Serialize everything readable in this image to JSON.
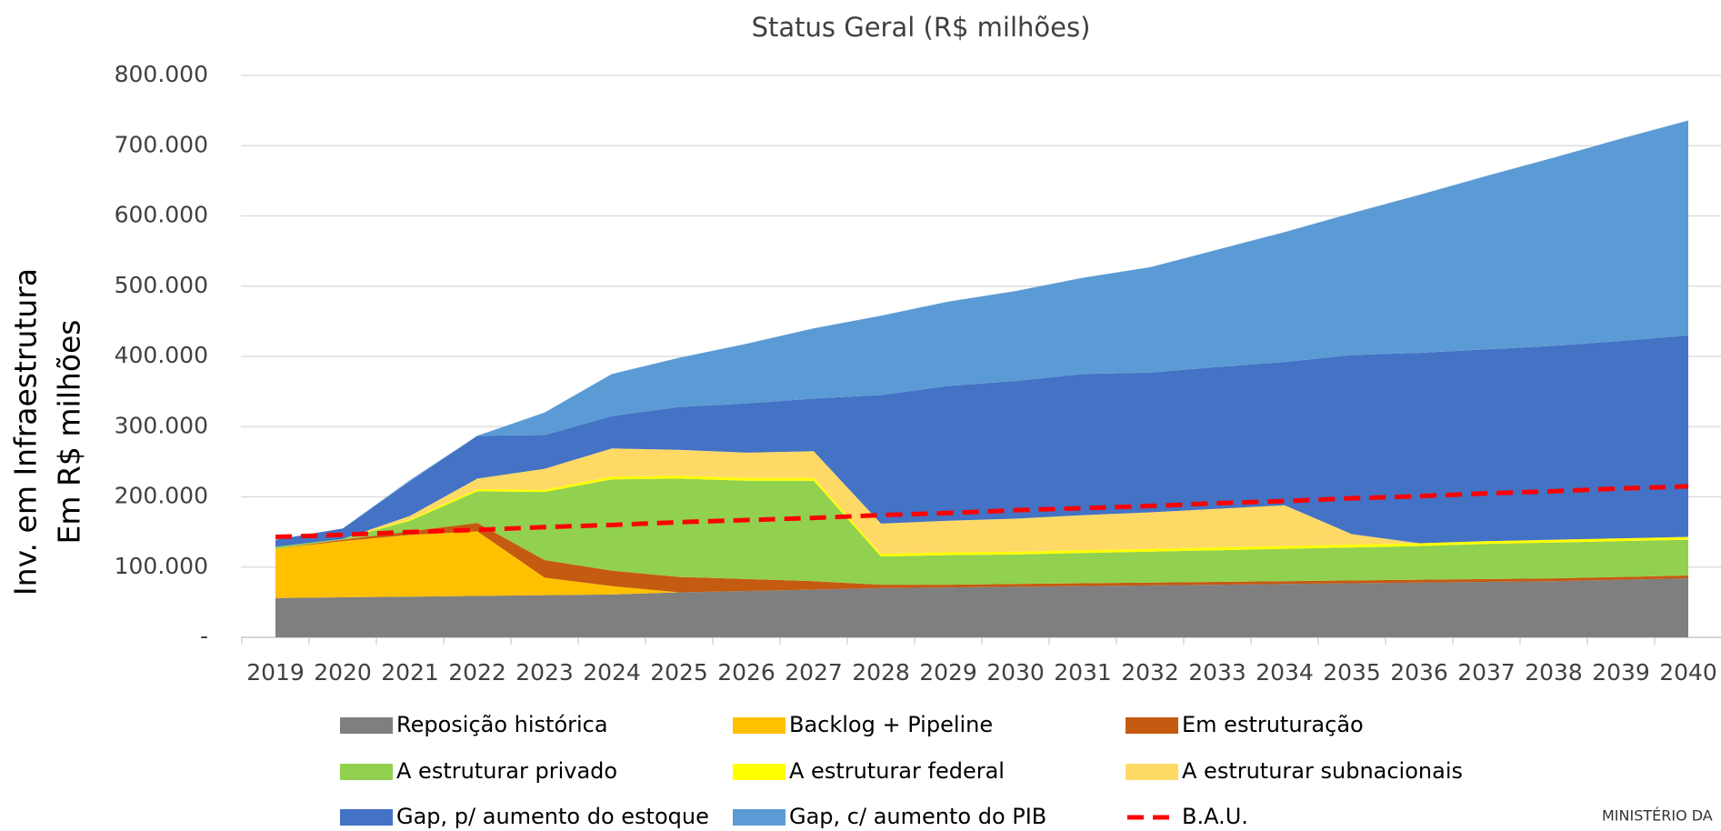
{
  "chart_data": {
    "type": "area",
    "stacked": true,
    "title": "Status Geral (R$ milhões)",
    "ylabel": [
      "Inv. em Infraestrutura",
      "Em R$ milhões"
    ],
    "footer": "MINISTÉRIO DA",
    "grid": true,
    "legend": "bottom",
    "categories": [
      "2019",
      "2020",
      "2021",
      "2022",
      "2023",
      "2024",
      "2025",
      "2026",
      "2027",
      "2028",
      "2029",
      "2030",
      "2031",
      "2032",
      "2033",
      "2034",
      "2035",
      "2036",
      "2037",
      "2038",
      "2039",
      "2040"
    ],
    "ylim": [
      0,
      800000
    ],
    "yticks": [
      {
        "value": 0,
        "label": "-"
      },
      {
        "value": 100000,
        "label": "100.000"
      },
      {
        "value": 200000,
        "label": "200.000"
      },
      {
        "value": 300000,
        "label": "300.000"
      },
      {
        "value": 400000,
        "label": "400.000"
      },
      {
        "value": 500000,
        "label": "500.000"
      },
      {
        "value": 600000,
        "label": "600.000"
      },
      {
        "value": 700000,
        "label": "700.000"
      },
      {
        "value": 800000,
        "label": "800.000"
      }
    ],
    "series": [
      {
        "name": "Reposição histórica",
        "color": "#7f7f7f",
        "values": [
          56000,
          57000,
          58000,
          59000,
          60000,
          61000,
          64000,
          66000,
          68000,
          70000,
          71000,
          72000,
          73000,
          74000,
          75000,
          76000,
          77000,
          78000,
          79000,
          80000,
          82000,
          84000
        ]
      },
      {
        "name": "Backlog + Pipeline",
        "color": "#ffc000",
        "values": [
          70000,
          80000,
          88000,
          92000,
          25000,
          12000,
          0,
          0,
          0,
          0,
          0,
          0,
          0,
          0,
          0,
          0,
          0,
          0,
          0,
          0,
          0,
          0
        ]
      },
      {
        "name": "Em estruturação",
        "color": "#c55a11",
        "values": [
          0,
          2000,
          5000,
          12000,
          25000,
          22000,
          22000,
          17000,
          12000,
          5000,
          4000,
          4000,
          4000,
          4000,
          4000,
          4000,
          4000,
          4000,
          4000,
          4000,
          4000,
          4000
        ]
      },
      {
        "name": "A estruturar privado",
        "color": "#92d050",
        "values": [
          3000,
          1000,
          15000,
          45000,
          97000,
          130000,
          140000,
          140000,
          143000,
          40000,
          42000,
          42000,
          43000,
          44000,
          45000,
          46000,
          47000,
          48000,
          50000,
          51000,
          51000,
          51000
        ]
      },
      {
        "name": "A estruturar federal",
        "color": "#ffff00",
        "values": [
          0,
          0,
          2000,
          3000,
          3000,
          4000,
          4000,
          4000,
          4000,
          4000,
          4000,
          4000,
          4000,
          4000,
          4000,
          4000,
          4000,
          4000,
          4000,
          4000,
          4000,
          4000
        ]
      },
      {
        "name": "A estruturar subnacionais",
        "color": "#ffd966",
        "values": [
          0,
          0,
          5000,
          15000,
          30000,
          40000,
          37000,
          36000,
          38000,
          43000,
          45000,
          47000,
          50000,
          52000,
          55000,
          58000,
          15000,
          0,
          0,
          0,
          0,
          0
        ]
      },
      {
        "name": "Gap, p/ aumento do estoque",
        "color": "#4472c4",
        "values": [
          10000,
          15000,
          49000,
          61000,
          48000,
          46000,
          61000,
          70000,
          75000,
          183000,
          192000,
          196000,
          201000,
          199000,
          202000,
          204000,
          255000,
          271000,
          273000,
          276000,
          281000,
          287000
        ]
      },
      {
        "name": "Gap, c/ aumento do PIB",
        "color": "#5b9bd5",
        "values": [
          0,
          0,
          2000,
          0,
          32000,
          60000,
          70000,
          85000,
          100000,
          113000,
          120000,
          128000,
          137000,
          150000,
          167000,
          185000,
          202000,
          225000,
          247000,
          268000,
          288000,
          306000
        ]
      },
      {
        "name": "B.A.U.",
        "color": "#ff0000",
        "type": "line",
        "style": "dashed",
        "values": [
          143000,
          146000,
          150000,
          153000,
          157000,
          160000,
          164000,
          167000,
          170000,
          174000,
          177000,
          181000,
          184000,
          187000,
          191000,
          194000,
          198000,
          201000,
          205000,
          208000,
          212000,
          215000
        ]
      }
    ]
  }
}
